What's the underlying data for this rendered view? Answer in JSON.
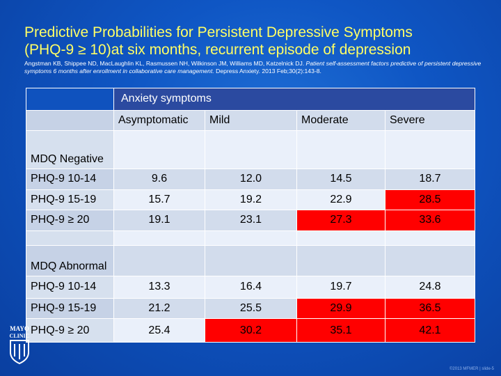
{
  "slide": {
    "title_line1": "Predictive Probabilities for Persistent Depressive Symptoms",
    "title_line2": "(PHQ-9 ≥ 10)at six months, recurrent episode of depression",
    "citation_authors": "Angstman KB, Shippee ND, MacLaughlin KL, Rasmussen NH, Wilkinson JM, Williams MD, Katzelnick DJ.",
    "citation_title": "Patient self-assessment factors predictive of persistent depressive symptoms 6 months after enrollment in collaborative care management.",
    "citation_journal": "Depress Anxiety. 2013 Feb;30(2):143-8.",
    "footer": "©2013 MFMER | slide-5",
    "logo_text_1": "MAYO",
    "logo_text_2": "CLINIC"
  },
  "table": {
    "group_header": "Anxiety symptoms",
    "columns": [
      "Asymptomatic",
      "Mild",
      "Moderate",
      "Severe"
    ],
    "highlight_color": "#ff0000",
    "sections": [
      {
        "label": "MDQ Negative",
        "rows": [
          {
            "label": "PHQ-9 10-14",
            "values": [
              "9.6",
              "12.0",
              "14.5",
              "18.7"
            ],
            "red": [
              false,
              false,
              false,
              false
            ]
          },
          {
            "label": "PHQ-9 15-19",
            "values": [
              "15.7",
              "19.2",
              "22.9",
              "28.5"
            ],
            "red": [
              false,
              false,
              false,
              true
            ]
          },
          {
            "label": "PHQ-9 ≥ 20",
            "values": [
              "19.1",
              "23.1",
              "27.3",
              "33.6"
            ],
            "red": [
              false,
              false,
              true,
              true
            ]
          }
        ]
      },
      {
        "label": "MDQ Abnormal",
        "rows": [
          {
            "label": "PHQ-9 10-14",
            "values": [
              "13.3",
              "16.4",
              "19.7",
              "24.8"
            ],
            "red": [
              false,
              false,
              false,
              false
            ]
          },
          {
            "label": "PHQ-9 15-19",
            "values": [
              "21.2",
              "25.5",
              "29.9",
              "36.5"
            ],
            "red": [
              false,
              false,
              true,
              true
            ]
          },
          {
            "label": "PHQ-9 ≥ 20",
            "values": [
              "25.4",
              "30.2",
              "35.1",
              "42.1"
            ],
            "red": [
              false,
              true,
              true,
              true
            ]
          }
        ]
      }
    ]
  }
}
